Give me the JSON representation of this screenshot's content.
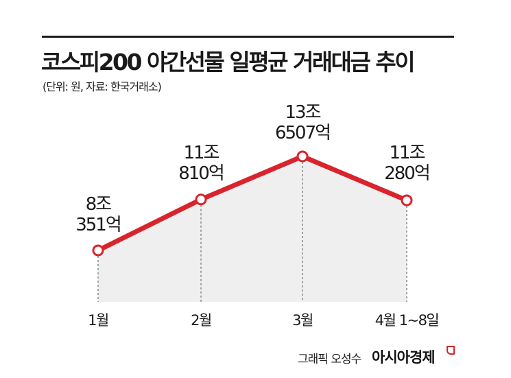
{
  "header": {
    "title": "코스피200 야간선물 일평균 거래대금 추이",
    "subtitle": "(단위: 원, 자료: 한국거래소)"
  },
  "footer": {
    "credit": "그래픽 오성수",
    "brand": "아시아경제"
  },
  "colors": {
    "line": "#d9232d",
    "area_fill": "#efefef",
    "text": "#1a1a1a"
  },
  "chart_data": {
    "type": "line",
    "title": "코스피200 야간선물 일평균 거래대금 추이",
    "subtitle": "(단위: 원, 자료: 한국거래소)",
    "xlabel": "",
    "ylabel": "",
    "categories": [
      "1월",
      "2월",
      "3월",
      "4월 1~8일"
    ],
    "values": [
      8035100000000,
      11081000000000,
      13650700000000,
      11028000000000
    ],
    "data_labels": [
      {
        "line1": "8조",
        "line2": "351억"
      },
      {
        "line1": "11조",
        "line2": "810억"
      },
      {
        "line1": "13조",
        "line2": "6507억"
      },
      {
        "line1": "11조",
        "line2": "280억"
      }
    ],
    "series": [
      {
        "name": "일평균 거래대금",
        "values": [
          8035100000000,
          11081000000000,
          13650700000000,
          11028000000000
        ]
      }
    ],
    "grid": false,
    "legend": "none",
    "area_fill": true
  }
}
